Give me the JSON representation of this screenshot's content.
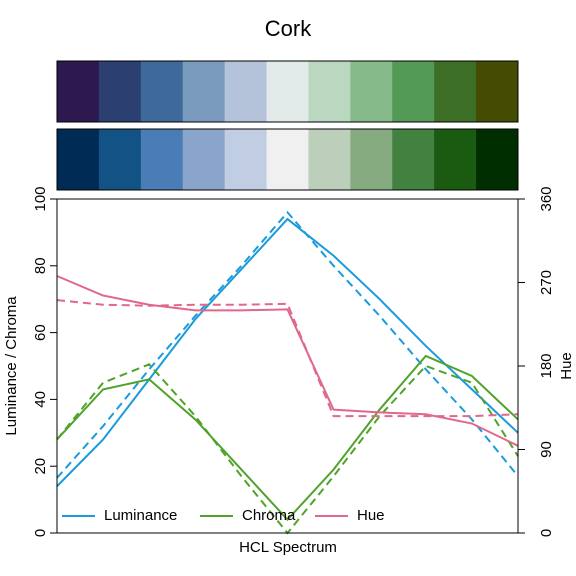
{
  "chart_data": {
    "type": "line",
    "title": "Cork",
    "swatches": [
      [
        "#2d1850",
        "#2b4070",
        "#3d6a9b",
        "#7a9bbd",
        "#b4c3da",
        "#e2ebe9",
        "#bad8bf",
        "#87ba8a",
        "#529a55",
        "#3d6e25",
        "#434c02"
      ],
      [
        "#002b55",
        "#125285",
        "#4a7db5",
        "#8aa4cc",
        "#c0cde3",
        "#f0f0f0",
        "#bccfbb",
        "#86ab80",
        "#428140",
        "#1b5a11",
        "#012e00"
      ]
    ],
    "xlabel": "HCL Spectrum",
    "ylabel": "Luminance / Chroma",
    "y2label": "Hue",
    "ylim": [
      0,
      100
    ],
    "yticks": [
      0,
      20,
      40,
      60,
      80,
      100
    ],
    "y2lim": [
      0,
      360
    ],
    "y2ticks": [
      0,
      90,
      180,
      270,
      360
    ],
    "legend": "bottomleft",
    "series": [
      {
        "name": "Luminance",
        "color": "#1a9bdc",
        "values": [
          14,
          28,
          46,
          64,
          79,
          94,
          83,
          70,
          56,
          43,
          30
        ],
        "reference": [
          16.5,
          32,
          49,
          65,
          80,
          96,
          80,
          65,
          49,
          34,
          17
        ]
      },
      {
        "name": "Chroma",
        "color": "#4fa32a",
        "values": [
          28,
          43,
          46,
          34,
          19,
          4,
          19,
          37,
          53,
          47,
          34
        ],
        "reference": [
          28,
          45,
          50.5,
          35,
          17,
          0,
          17,
          35,
          50,
          45,
          23
        ]
      },
      {
        "name": "Hue",
        "color": "#e0688a",
        "axis": "y2",
        "values": [
          277,
          256,
          246,
          240,
          240,
          241,
          133,
          130,
          128,
          118,
          94
        ],
        "reference": [
          251,
          246,
          245,
          246,
          246,
          247,
          126,
          126,
          126,
          126,
          128
        ]
      }
    ]
  }
}
